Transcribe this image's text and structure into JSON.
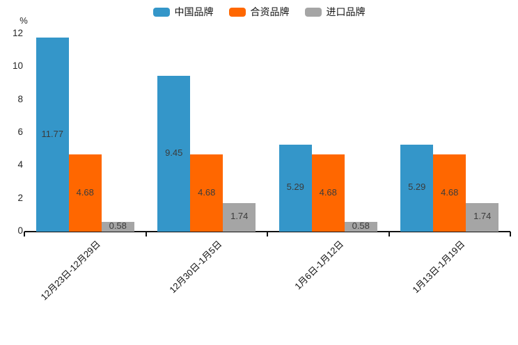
{
  "chart_data": {
    "type": "bar",
    "title": "",
    "ylabel": "%",
    "xlabel": "",
    "ylim": [
      0,
      12
    ],
    "yticks": [
      0,
      2,
      4,
      6,
      8,
      10,
      12
    ],
    "grid": false,
    "legend_position": "top-center",
    "categories": [
      "12月23日-12月29日",
      "12月30日-1月5日",
      "1月6日-1月12日",
      "1月13日-1月19日"
    ],
    "series": [
      {
        "id": "china-brand",
        "name": "中国品牌",
        "color": "#3496c9",
        "values": [
          11.77,
          9.45,
          5.29,
          5.29
        ]
      },
      {
        "id": "joint-venture-brand",
        "name": "合资品牌",
        "color": "#ff6700",
        "values": [
          4.68,
          4.68,
          4.68,
          4.68
        ]
      },
      {
        "id": "import-brand",
        "name": "进口品牌",
        "color": "#a5a5a5",
        "values": [
          0.58,
          1.74,
          0.58,
          1.74
        ]
      }
    ],
    "value_labels": [
      "11.77",
      "4.68",
      "0.58",
      "9.45",
      "4.68",
      "1.74",
      "5.29",
      "4.68",
      "0.58",
      "5.29",
      "4.68",
      "1.74"
    ],
    "axis_color": "#111111",
    "value_label_color": "#3b3b3b",
    "background_color": "#ffffff"
  }
}
